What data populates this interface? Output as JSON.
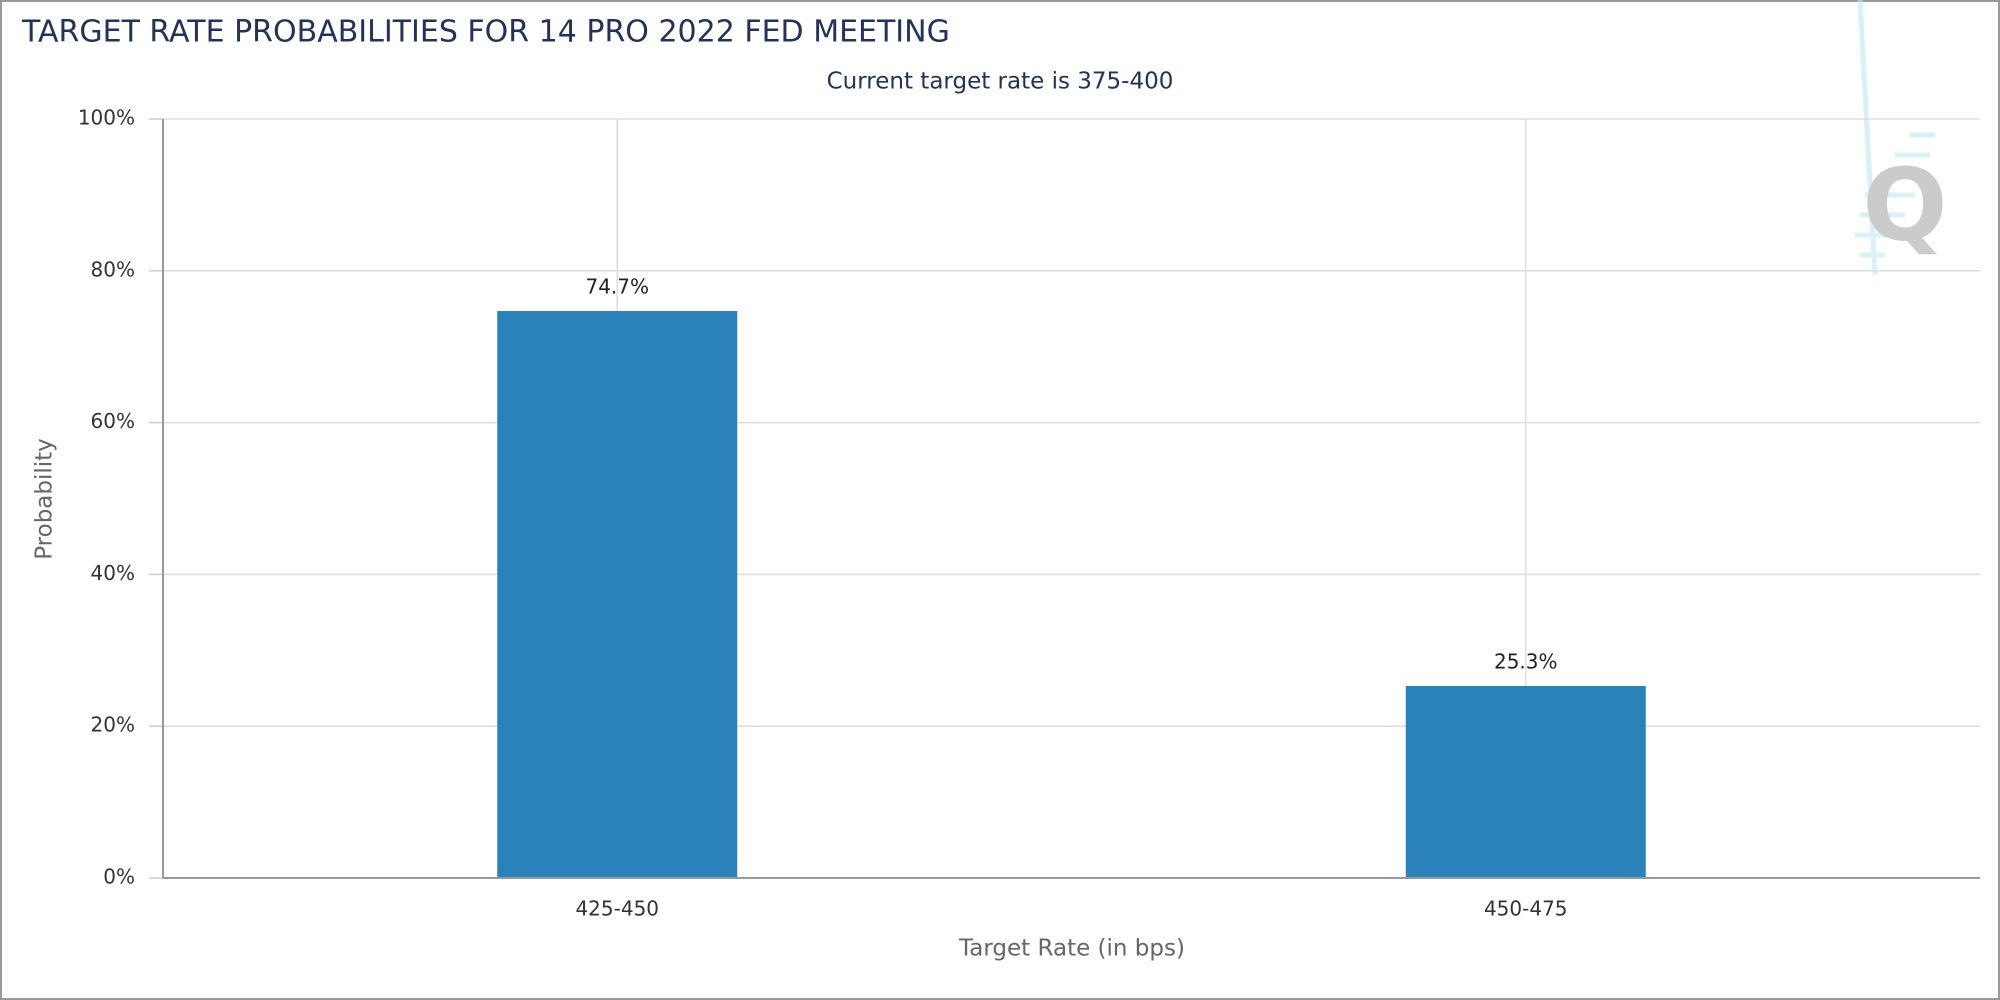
{
  "chart_data": {
    "type": "bar",
    "title": "TARGET RATE PROBABILITIES FOR 14 PRO 2022 FED MEETING",
    "subtitle": "Current target rate is 375-400",
    "x_label": "Target Rate (in bps)",
    "y_label": "Probability",
    "categories": [
      "425-450",
      "450-475"
    ],
    "values": [
      74.7,
      25.3
    ],
    "value_labels": [
      "74.7%",
      "25.3%"
    ],
    "color": "#2a82ba",
    "ylim": [
      0,
      100
    ],
    "yticks": [
      {
        "value": 0,
        "label": "0%"
      },
      {
        "value": 20,
        "label": "20%"
      },
      {
        "value": 40,
        "label": "40%"
      },
      {
        "value": 60,
        "label": "60%"
      },
      {
        "value": 80,
        "label": "80%"
      },
      {
        "value": 100,
        "label": "100%"
      }
    ],
    "grid": true,
    "x_grid": true
  }
}
